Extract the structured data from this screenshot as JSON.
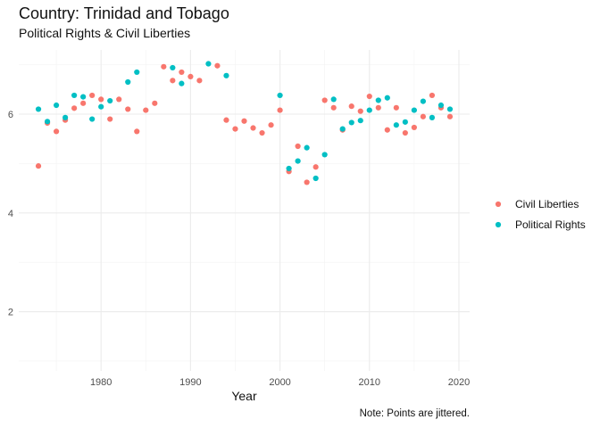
{
  "chart_data": {
    "type": "scatter",
    "title": "Country: Trinidad and Tobago",
    "subtitle": "Political Rights & Civil Liberties",
    "xlabel": "Year",
    "ylabel": "",
    "caption": "Note: Points are jittered.",
    "xlim": [
      1970.8,
      2021.2
    ],
    "ylim": [
      0.8,
      7.3
    ],
    "x_ticks": [
      1980,
      1990,
      2000,
      2010,
      2020
    ],
    "y_ticks": [
      2,
      4,
      6
    ],
    "grid": true,
    "legend_position": "right",
    "series": [
      {
        "name": "Civil Liberties",
        "color": "#F8766D",
        "points": [
          [
            1973,
            4.95
          ],
          [
            1974,
            5.82
          ],
          [
            1975,
            5.65
          ],
          [
            1976,
            5.88
          ],
          [
            1977,
            6.12
          ],
          [
            1978,
            6.22
          ],
          [
            1979,
            6.38
          ],
          [
            1980,
            6.3
          ],
          [
            1981,
            5.9
          ],
          [
            1982,
            6.3
          ],
          [
            1983,
            6.1
          ],
          [
            1984,
            5.65
          ],
          [
            1985,
            6.08
          ],
          [
            1986,
            6.22
          ],
          [
            1987,
            6.96
          ],
          [
            1988,
            6.68
          ],
          [
            1989,
            6.85
          ],
          [
            1990,
            6.76
          ],
          [
            1991,
            6.68
          ],
          [
            1993,
            6.98
          ],
          [
            1994,
            5.88
          ],
          [
            1995,
            5.7
          ],
          [
            1996,
            5.86
          ],
          [
            1997,
            5.72
          ],
          [
            1998,
            5.62
          ],
          [
            1999,
            5.78
          ],
          [
            2000,
            6.08
          ],
          [
            2001,
            4.84
          ],
          [
            2002,
            5.35
          ],
          [
            2003,
            4.62
          ],
          [
            2004,
            4.93
          ],
          [
            2005,
            6.28
          ],
          [
            2006,
            6.13
          ],
          [
            2007,
            5.68
          ],
          [
            2008,
            6.16
          ],
          [
            2009,
            6.06
          ],
          [
            2010,
            6.36
          ],
          [
            2011,
            6.13
          ],
          [
            2012,
            5.68
          ],
          [
            2013,
            6.13
          ],
          [
            2014,
            5.62
          ],
          [
            2015,
            5.73
          ],
          [
            2016,
            5.95
          ],
          [
            2017,
            6.38
          ],
          [
            2018,
            6.13
          ],
          [
            2019,
            5.95
          ]
        ]
      },
      {
        "name": "Political Rights",
        "color": "#00BFC4",
        "points": [
          [
            1973,
            6.1
          ],
          [
            1974,
            5.85
          ],
          [
            1975,
            6.18
          ],
          [
            1976,
            5.93
          ],
          [
            1977,
            6.38
          ],
          [
            1978,
            6.35
          ],
          [
            1979,
            5.9
          ],
          [
            1980,
            6.15
          ],
          [
            1981,
            6.27
          ],
          [
            1983,
            6.65
          ],
          [
            1984,
            6.85
          ],
          [
            1988,
            6.94
          ],
          [
            1989,
            6.62
          ],
          [
            1992,
            7.02
          ],
          [
            1994,
            6.78
          ],
          [
            2000,
            6.38
          ],
          [
            2001,
            4.9
          ],
          [
            2002,
            5.05
          ],
          [
            2003,
            5.32
          ],
          [
            2004,
            4.7
          ],
          [
            2005,
            5.18
          ],
          [
            2006,
            6.3
          ],
          [
            2007,
            5.7
          ],
          [
            2008,
            5.83
          ],
          [
            2009,
            5.87
          ],
          [
            2010,
            6.08
          ],
          [
            2011,
            6.28
          ],
          [
            2012,
            6.33
          ],
          [
            2013,
            5.78
          ],
          [
            2014,
            5.84
          ],
          [
            2015,
            6.08
          ],
          [
            2016,
            6.26
          ],
          [
            2017,
            5.93
          ],
          [
            2018,
            6.18
          ],
          [
            2019,
            6.1
          ]
        ]
      }
    ]
  }
}
